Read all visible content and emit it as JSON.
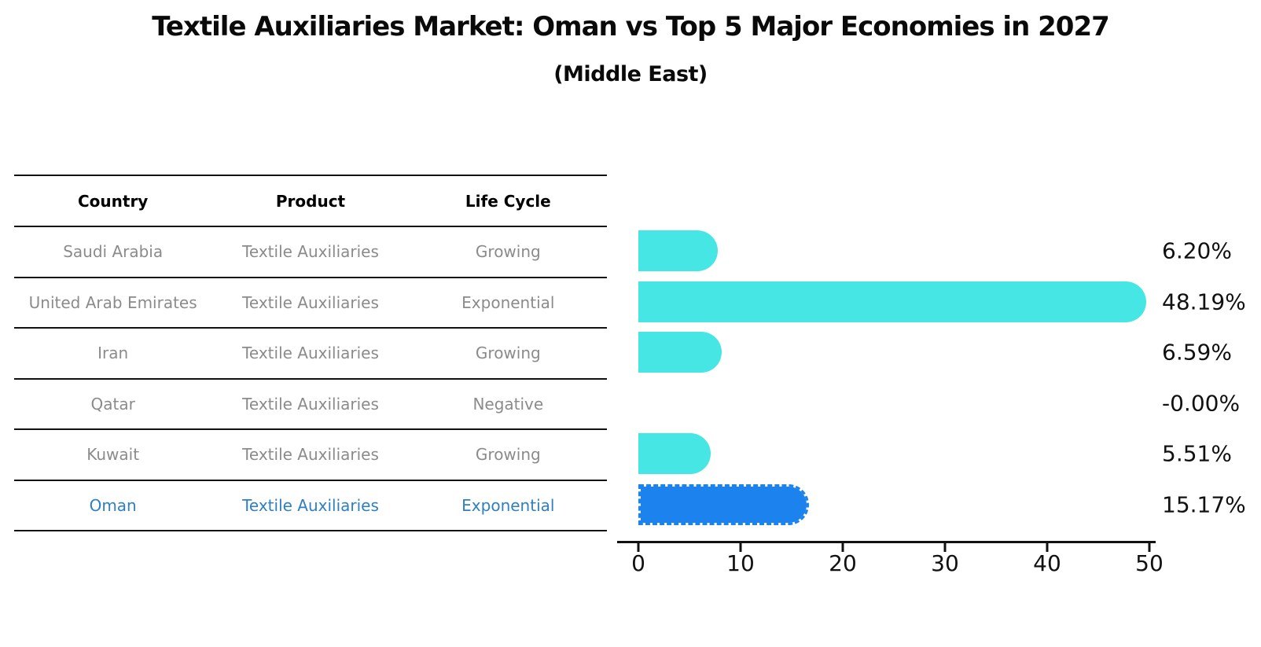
{
  "title": "Textile Auxiliaries Market: Oman vs Top 5 Major Economies in 2027",
  "subtitle": "(Middle East)",
  "colors": {
    "bar": "#45e6e3",
    "highlight_bar": "#1c82ee",
    "highlight_text": "#2e80c2",
    "row_text": "#8b8b8b",
    "header_text": "#000000",
    "axis_and_labels": "#111111"
  },
  "table": {
    "headers": [
      "Country",
      "Product",
      "Life Cycle"
    ],
    "rows": [
      {
        "country": "Saudi Arabia",
        "product": "Textile Auxiliaries",
        "life_cycle": "Growing",
        "highlight": false
      },
      {
        "country": "United Arab Emirates",
        "product": "Textile Auxiliaries",
        "life_cycle": "Exponential",
        "highlight": false
      },
      {
        "country": "Iran",
        "product": "Textile Auxiliaries",
        "life_cycle": "Growing",
        "highlight": false
      },
      {
        "country": "Qatar",
        "product": "Textile Auxiliaries",
        "life_cycle": "Negative",
        "highlight": false
      },
      {
        "country": "Kuwait",
        "product": "Textile Auxiliaries",
        "life_cycle": "Growing",
        "highlight": false
      },
      {
        "country": "Oman",
        "product": "Textile Auxiliaries",
        "life_cycle": "Exponential",
        "highlight": true
      }
    ]
  },
  "chart_data": {
    "type": "bar",
    "orientation": "horizontal",
    "title": "Textile Auxiliaries Market: Oman vs Top 5 Major Economies in 2027",
    "subtitle": "(Middle East)",
    "categories": [
      "Saudi Arabia",
      "United Arab Emirates",
      "Iran",
      "Qatar",
      "Kuwait",
      "Oman"
    ],
    "values": [
      6.2,
      48.19,
      6.59,
      -0.0,
      5.51,
      15.17
    ],
    "value_labels": [
      "6.20%",
      "48.19%",
      "6.59%",
      "-0.00%",
      "5.51%",
      "15.17%"
    ],
    "highlight_index": 5,
    "xlim": [
      0,
      50
    ],
    "xticks": [
      0,
      10,
      20,
      30,
      40,
      50
    ],
    "grid": false,
    "legend": "none"
  }
}
